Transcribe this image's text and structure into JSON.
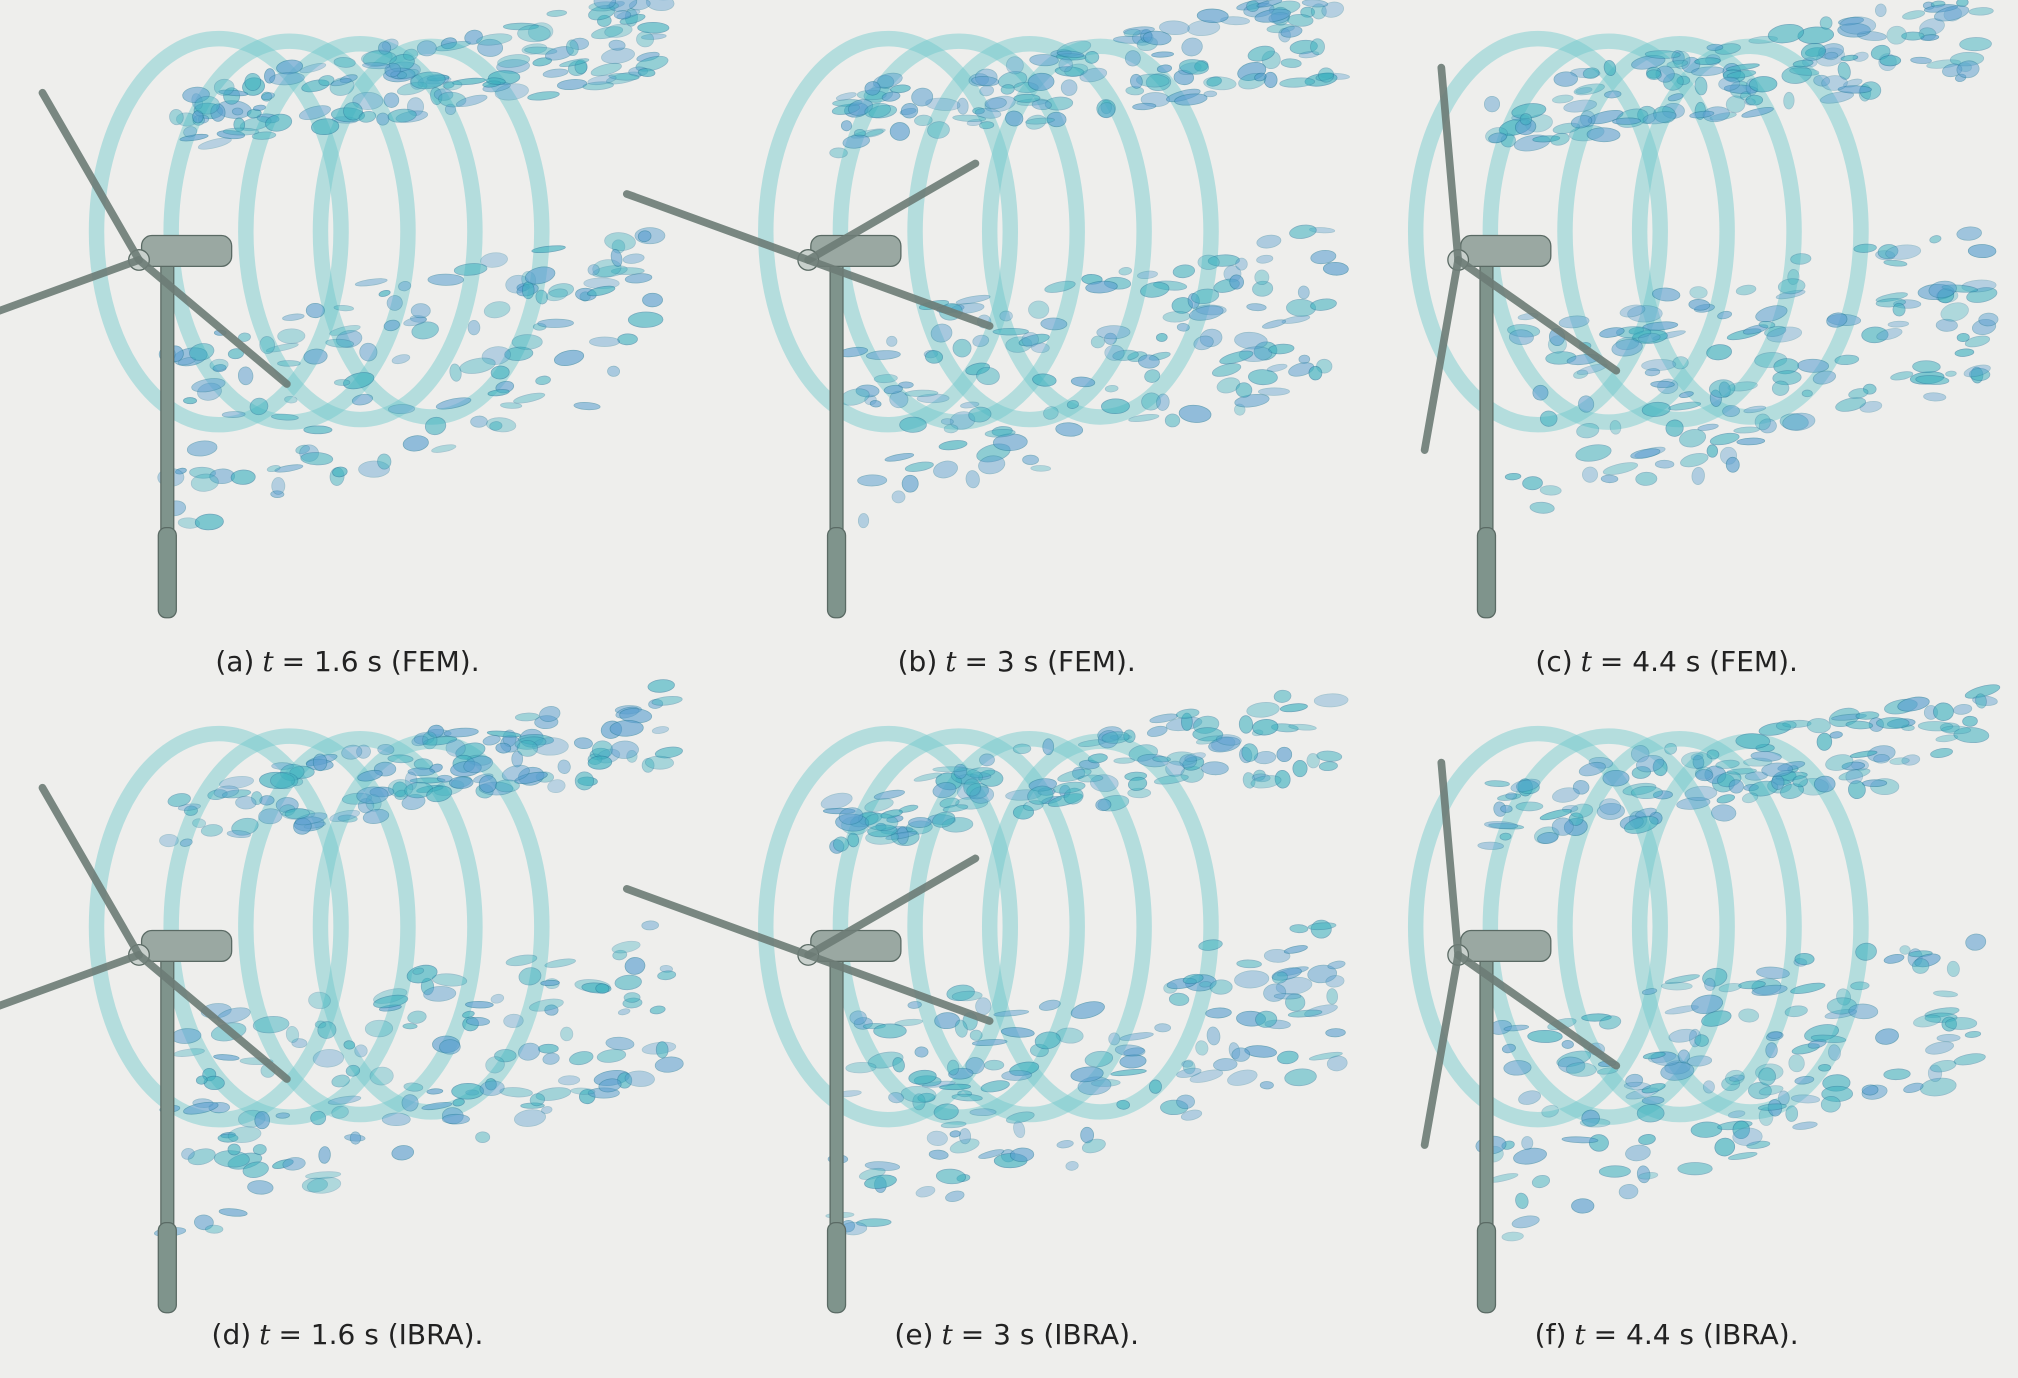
{
  "figure": {
    "panels": [
      {
        "label": "(a)",
        "symbol": "t",
        "text": "= 1.6 s (FEM)."
      },
      {
        "label": "(b)",
        "symbol": "t",
        "text": "= 3 s (FEM)."
      },
      {
        "label": "(c)",
        "symbol": "t",
        "text": "= 4.4 s (FEM)."
      },
      {
        "label": "(d)",
        "symbol": "t",
        "text": "= 1.6 s (IBRA)."
      },
      {
        "label": "(e)",
        "symbol": "t",
        "text": "= 3 s (IBRA)."
      },
      {
        "label": "(f)",
        "symbol": "t",
        "text": "= 4.4 s (IBRA)."
      }
    ]
  }
}
